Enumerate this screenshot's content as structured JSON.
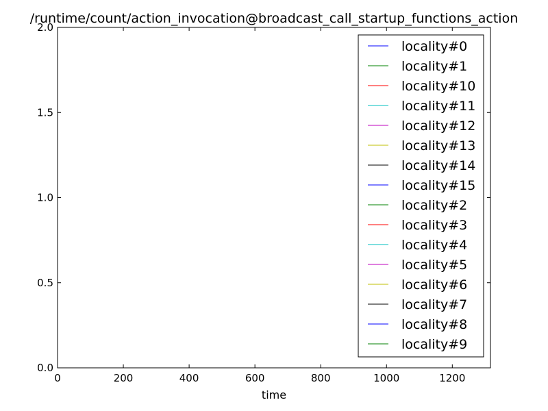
{
  "chart_data": {
    "type": "line",
    "title": "/runtime/count/action_invocation@broadcast_call_startup_functions_action",
    "xlabel": "time",
    "ylabel": "",
    "xlim": [
      0,
      1316
    ],
    "ylim": [
      0.0,
      2.0
    ],
    "xticks": [
      0,
      200,
      400,
      600,
      800,
      1000,
      1200
    ],
    "xtick_labels": [
      "0",
      "200",
      "400",
      "600",
      "800",
      "1000",
      "1200"
    ],
    "yticks": [
      0.0,
      0.5,
      1.0,
      1.5,
      2.0
    ],
    "ytick_labels": [
      "0.0",
      "0.5",
      "1.0",
      "1.5",
      "2.0"
    ],
    "grid": false,
    "legend_position": "top-right",
    "series": [
      {
        "name": "locality#0",
        "color": "#0000ff",
        "x": [
          0,
          1316
        ],
        "y": [
          0,
          0
        ]
      },
      {
        "name": "locality#1",
        "color": "#008000",
        "x": [
          0,
          1316
        ],
        "y": [
          0,
          0
        ]
      },
      {
        "name": "locality#10",
        "color": "#ff0000",
        "x": [
          0,
          1316
        ],
        "y": [
          0,
          0
        ]
      },
      {
        "name": "locality#11",
        "color": "#00bfbf",
        "x": [
          0,
          1316
        ],
        "y": [
          0,
          0
        ]
      },
      {
        "name": "locality#12",
        "color": "#bf00bf",
        "x": [
          0,
          1316
        ],
        "y": [
          0,
          0
        ]
      },
      {
        "name": "locality#13",
        "color": "#bfbf00",
        "x": [
          0,
          1316
        ],
        "y": [
          0,
          0
        ]
      },
      {
        "name": "locality#14",
        "color": "#000000",
        "x": [
          0,
          1316
        ],
        "y": [
          0,
          0
        ]
      },
      {
        "name": "locality#15",
        "color": "#0000ff",
        "x": [
          0,
          1316
        ],
        "y": [
          0,
          0
        ]
      },
      {
        "name": "locality#2",
        "color": "#008000",
        "x": [
          0,
          1316
        ],
        "y": [
          0,
          0
        ]
      },
      {
        "name": "locality#3",
        "color": "#ff0000",
        "x": [
          0,
          1316
        ],
        "y": [
          0,
          0
        ]
      },
      {
        "name": "locality#4",
        "color": "#00bfbf",
        "x": [
          0,
          1316
        ],
        "y": [
          0,
          0
        ]
      },
      {
        "name": "locality#5",
        "color": "#bf00bf",
        "x": [
          0,
          1316
        ],
        "y": [
          0,
          0
        ]
      },
      {
        "name": "locality#6",
        "color": "#bfbf00",
        "x": [
          0,
          1316
        ],
        "y": [
          0,
          0
        ]
      },
      {
        "name": "locality#7",
        "color": "#000000",
        "x": [
          0,
          1316
        ],
        "y": [
          0,
          0
        ]
      },
      {
        "name": "locality#8",
        "color": "#0000ff",
        "x": [
          0,
          1316
        ],
        "y": [
          0,
          0
        ]
      },
      {
        "name": "locality#9",
        "color": "#008000",
        "x": [
          0,
          1316
        ],
        "y": [
          0,
          0
        ]
      }
    ]
  }
}
